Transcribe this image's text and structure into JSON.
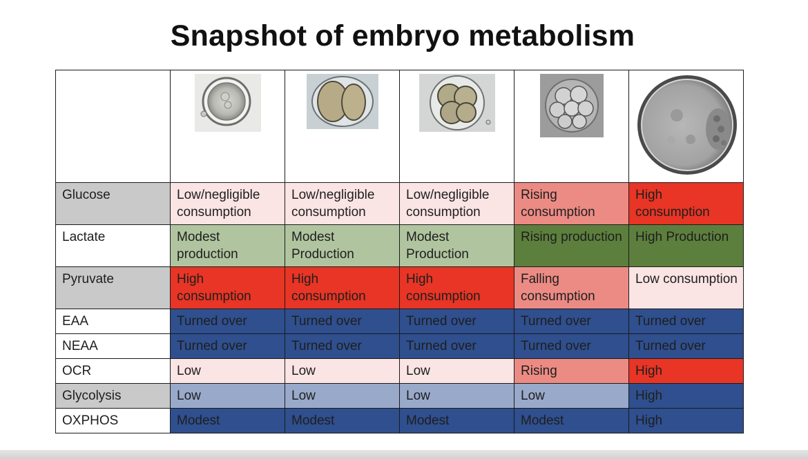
{
  "title": "Snapshot of embryo metabolism",
  "stages": [
    {
      "icon": "zygote-embryo-image"
    },
    {
      "icon": "two-cell-embryo-image"
    },
    {
      "icon": "four-cell-embryo-image"
    },
    {
      "icon": "eight-cell-embryo-image"
    },
    {
      "icon": "blastocyst-embryo-image"
    }
  ],
  "rows": [
    {
      "label": "Glucose",
      "cells": [
        "Low/negligible consumption",
        "Low/negligible consumption",
        "Low/negligible consumption",
        "Rising consumption",
        "High consumption"
      ]
    },
    {
      "label": "Lactate",
      "cells": [
        "Modest production",
        "Modest Production",
        "Modest Production",
        "Rising production",
        "High Production"
      ]
    },
    {
      "label": "Pyruvate",
      "cells": [
        "High consumption",
        "High consumption",
        "High consumption",
        "Falling consumption",
        "Low consumption"
      ]
    },
    {
      "label": "EAA",
      "cells": [
        "Turned over",
        "Turned over",
        "Turned over",
        "Turned over",
        "Turned over"
      ]
    },
    {
      "label": "NEAA",
      "cells": [
        "Turned over",
        "Turned over",
        "Turned over",
        "Turned over",
        "Turned over"
      ]
    },
    {
      "label": "OCR",
      "cells": [
        "Low",
        "Low",
        "Low",
        "Rising",
        "High"
      ]
    },
    {
      "label": "Glycolysis",
      "cells": [
        "Low",
        "Low",
        "Low",
        "Low",
        "High"
      ]
    },
    {
      "label": "OXPHOS",
      "cells": [
        "Modest",
        "Modest",
        "Modest",
        "Modest",
        "High"
      ]
    }
  ],
  "colors": {
    "light_pink": "#fbe4e4",
    "salmon": "#ec8b84",
    "red": "#e83525",
    "light_green": "#b0c59f",
    "dark_green": "#5d7f3d",
    "navy": "#2f4f8e",
    "light_blue": "#99a9ca",
    "label_grey": "#c9c9c9"
  }
}
